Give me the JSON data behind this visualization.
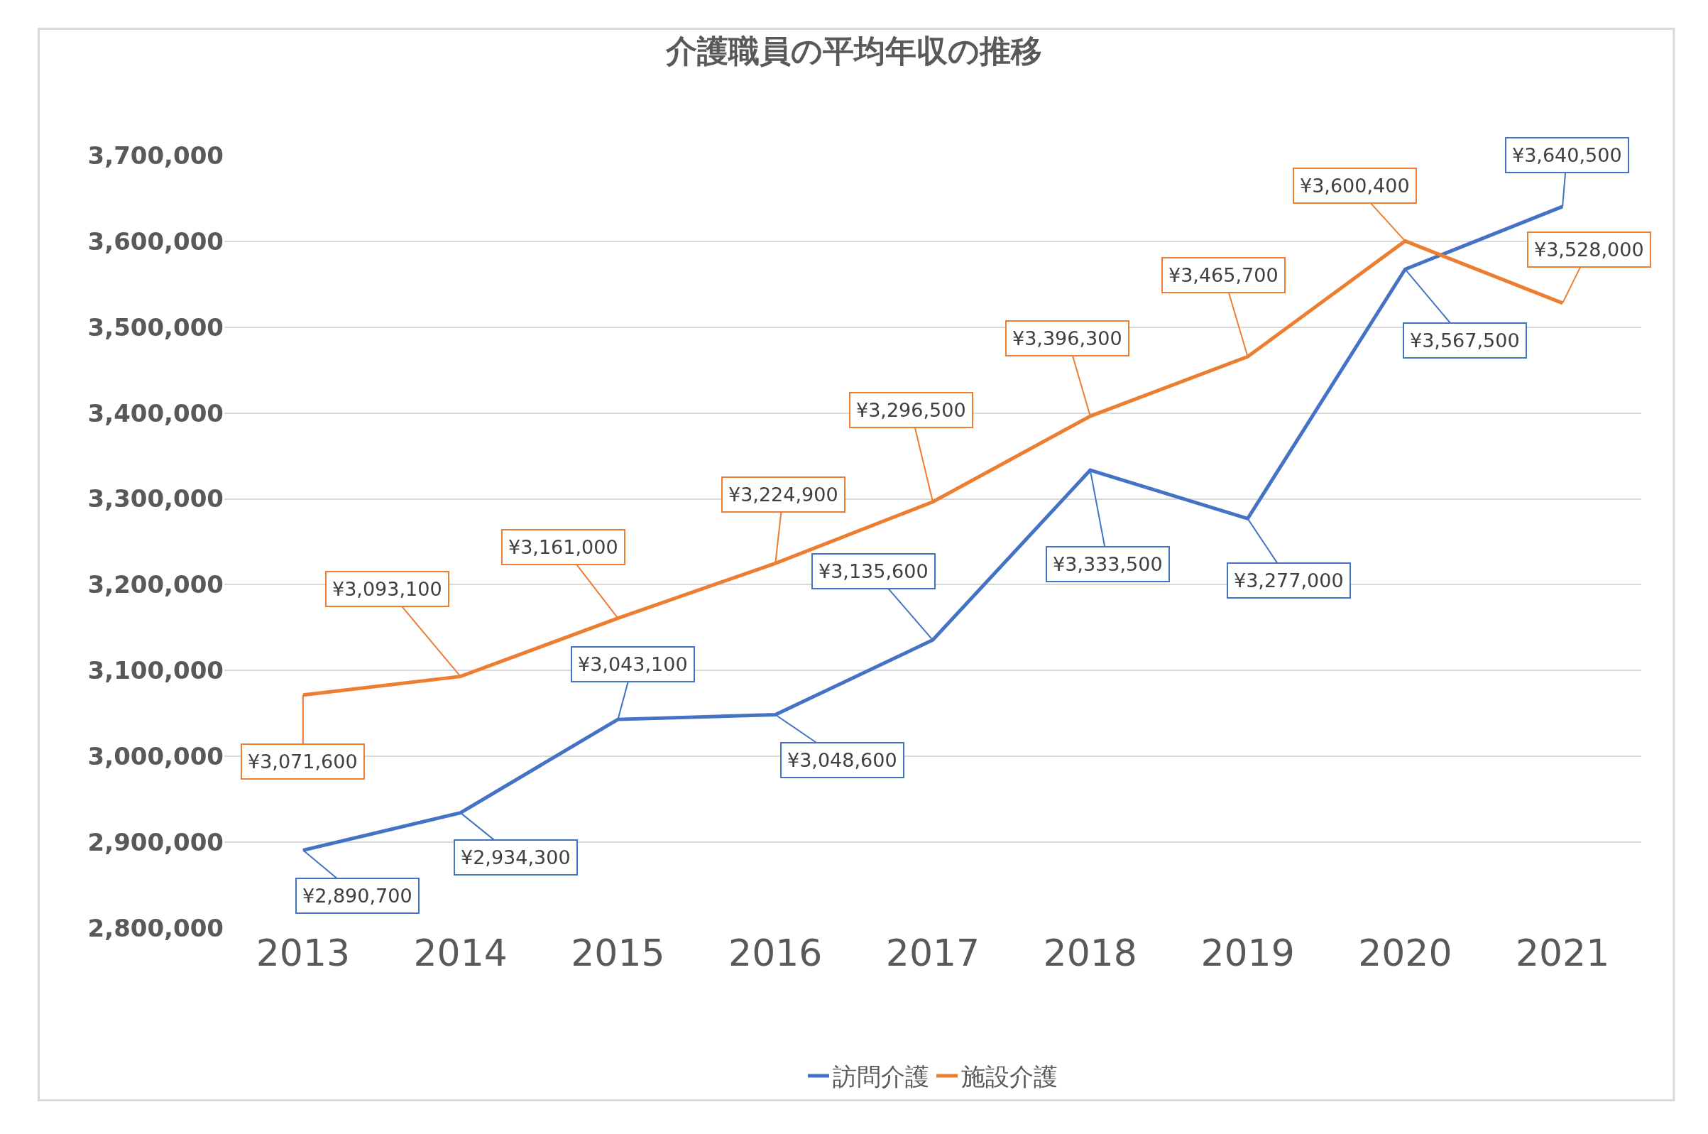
{
  "chart_data": {
    "type": "line",
    "title": "介護職員の平均年収の推移",
    "categories": [
      "2013",
      "2014",
      "2015",
      "2016",
      "2017",
      "2018",
      "2019",
      "2020",
      "2021"
    ],
    "series": [
      {
        "name": "訪問介護",
        "color": "#4472c4",
        "values": [
          2890700,
          2934300,
          3043100,
          3048600,
          3135600,
          3333500,
          3277000,
          3567500,
          3640500
        ],
        "value_labels": [
          "¥2,890,700",
          "¥2,934,300",
          "¥3,043,100",
          "¥3,048,600",
          "¥3,135,600",
          "¥3,333,500",
          "¥3,277,000",
          "¥3,567,500",
          "¥3,640,500"
        ]
      },
      {
        "name": "施設介護",
        "color": "#ed7d31",
        "values": [
          3071600,
          3093100,
          3161000,
          3224900,
          3296500,
          3396300,
          3465700,
          3600400,
          3528000
        ],
        "value_labels": [
          "¥3,071,600",
          "¥3,093,100",
          "¥3,161,000",
          "¥3,224,900",
          "¥3,296,500",
          "¥3,396,300",
          "¥3,465,700",
          "¥3,600,400",
          "¥3,528,000"
        ]
      }
    ],
    "ylim": [
      2800000,
      3700000
    ],
    "yticks": [
      {
        "value": 2800000,
        "label": "2,800,000"
      },
      {
        "value": 2900000,
        "label": "2,900,000"
      },
      {
        "value": 3000000,
        "label": "3,000,000"
      },
      {
        "value": 3100000,
        "label": "3,100,000"
      },
      {
        "value": 3200000,
        "label": "3,200,000"
      },
      {
        "value": 3300000,
        "label": "3,300,000"
      },
      {
        "value": 3400000,
        "label": "3,400,000"
      },
      {
        "value": 3500000,
        "label": "3,500,000"
      },
      {
        "value": 3600000,
        "label": "3,600,000"
      },
      {
        "value": 3700000,
        "label": "3,700,000"
      }
    ],
    "grid": "y",
    "legend": "bottom",
    "marker": "none",
    "line_style": "solid"
  }
}
